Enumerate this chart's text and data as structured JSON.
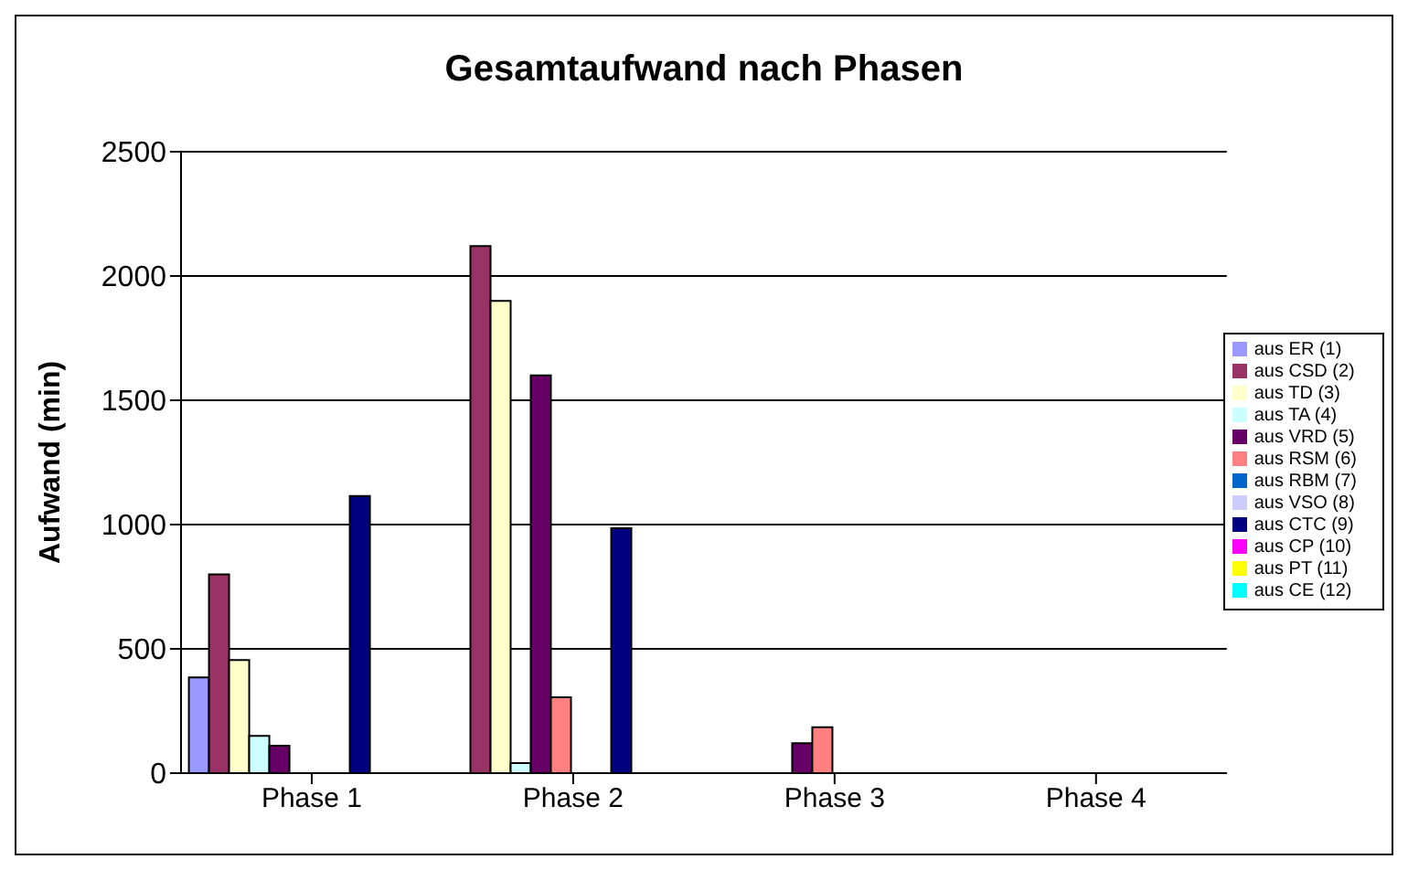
{
  "chart_data": {
    "type": "bar",
    "title": "Gesamtaufwand nach Phasen",
    "ylabel": "Aufwand (min)",
    "categories": [
      "Phase 1",
      "Phase 2",
      "Phase 3",
      "Phase 4"
    ],
    "series": [
      {
        "name": "aus ER (1)",
        "color": "#9999ff",
        "values": [
          385,
          null,
          0,
          0
        ]
      },
      {
        "name": "aus CSD (2)",
        "color": "#993366",
        "values": [
          800,
          2120,
          0,
          0
        ]
      },
      {
        "name": "aus TD (3)",
        "color": "#ffffcc",
        "values": [
          455,
          1900,
          0,
          0
        ]
      },
      {
        "name": "aus TA (4)",
        "color": "#ccffff",
        "values": [
          150,
          40,
          0,
          0
        ]
      },
      {
        "name": "aus VRD (5)",
        "color": "#660066",
        "values": [
          110,
          1600,
          120,
          0
        ]
      },
      {
        "name": "aus RSM (6)",
        "color": "#ff8080",
        "values": [
          0,
          305,
          185,
          0
        ]
      },
      {
        "name": "aus RBM (7)",
        "color": "#0066cc",
        "values": [
          0,
          0,
          0,
          0
        ]
      },
      {
        "name": "aus VSO (8)",
        "color": "#ccccff",
        "values": [
          0,
          0,
          0,
          0
        ]
      },
      {
        "name": "aus CTC (9)",
        "color": "#000080",
        "values": [
          1115,
          985,
          0,
          0
        ]
      },
      {
        "name": "aus CP (10)",
        "color": "#ff00ff",
        "values": [
          0,
          0,
          0,
          0
        ]
      },
      {
        "name": "aus PT (11)",
        "color": "#ffff00",
        "values": [
          0,
          0,
          0,
          0
        ]
      },
      {
        "name": "aus CE (12)",
        "color": "#00ffff",
        "values": [
          0,
          0,
          0,
          0
        ]
      }
    ],
    "ylim": [
      0,
      2500
    ],
    "yticks": [
      0,
      500,
      1000,
      1500,
      2000,
      2500
    ],
    "grid": "y",
    "legend": "right"
  }
}
